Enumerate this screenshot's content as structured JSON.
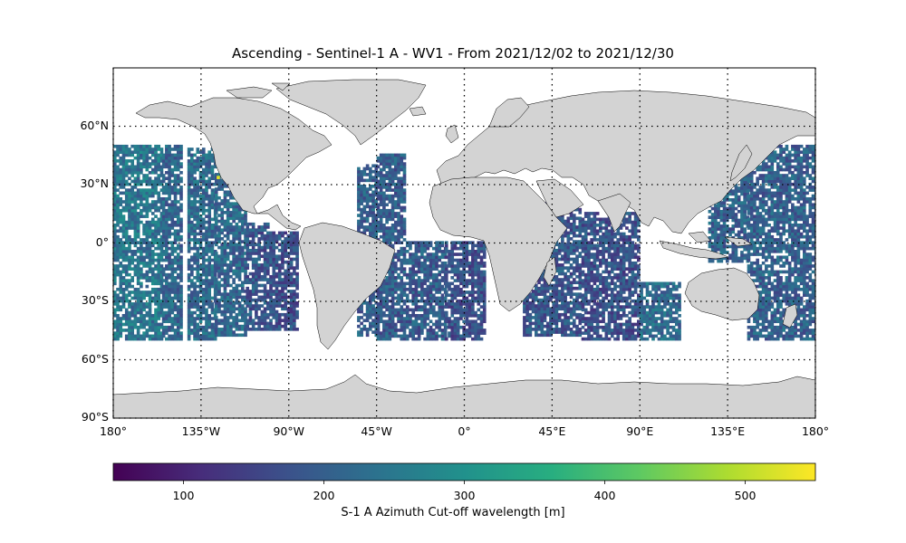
{
  "title": "Ascending - Sentinel-1 A - WV1 - From 2021/12/02 to 2021/12/30",
  "latitude_ticks": [
    {
      "value": 60,
      "label": "60°N"
    },
    {
      "value": 30,
      "label": "30°N"
    },
    {
      "value": 0,
      "label": "0°"
    },
    {
      "value": -30,
      "label": "30°S"
    },
    {
      "value": -60,
      "label": "60°S"
    },
    {
      "value": -90,
      "label": "90°S"
    }
  ],
  "longitude_ticks": [
    {
      "value": -180,
      "label": "180°"
    },
    {
      "value": -135,
      "label": "135°W"
    },
    {
      "value": -90,
      "label": "90°W"
    },
    {
      "value": -45,
      "label": "45°W"
    },
    {
      "value": 0,
      "label": "0°"
    },
    {
      "value": 45,
      "label": "45°E"
    },
    {
      "value": 90,
      "label": "90°E"
    },
    {
      "value": 135,
      "label": "135°E"
    },
    {
      "value": 180,
      "label": "180°"
    }
  ],
  "colorbar": {
    "label": "S-1 A Azimuth Cut-off wavelength [m]",
    "min": 50,
    "max": 550,
    "ticks": [
      {
        "value": 100,
        "label": "100"
      },
      {
        "value": 200,
        "label": "200"
      },
      {
        "value": 300,
        "label": "300"
      },
      {
        "value": 400,
        "label": "400"
      },
      {
        "value": 500,
        "label": "500"
      }
    ],
    "colormap": "viridis"
  },
  "map": {
    "projection": "PlateCarree",
    "lon_range": [
      -180,
      180
    ],
    "lat_range": [
      -90,
      90
    ],
    "land_color": "#d3d3d3",
    "coastline_color": "#000000",
    "gridlines": "dotted",
    "data_lat_range": [
      -50,
      50
    ]
  },
  "chart_data": {
    "type": "heatmap",
    "title": "Ascending - Sentinel-1 A - WV1 - From 2021/12/02 to 2021/12/30",
    "xlim": [
      -180,
      180
    ],
    "ylim": [
      -90,
      90
    ],
    "value_range": [
      50,
      550
    ],
    "colorbar_label": "S-1 A Azimuth Cut-off wavelength [m]",
    "swaths": [
      {
        "lon_start": -180,
        "lon_end": -155,
        "lat_min": -50,
        "lat_max": 50,
        "typical_value": 240
      },
      {
        "lon_start": -155,
        "lon_end": -145,
        "lat_min": -50,
        "lat_max": 50,
        "typical_value": 210
      },
      {
        "lon_start": -142,
        "lon_end": -128,
        "lat_min": -50,
        "lat_max": 48,
        "typical_value": 220
      },
      {
        "lon_start": -128,
        "lon_end": -112,
        "lat_min": -48,
        "lat_max": 35,
        "typical_value": 210
      },
      {
        "lon_start": -112,
        "lon_end": -100,
        "lat_min": -45,
        "lat_max": 10,
        "typical_value": 180
      },
      {
        "lon_start": -100,
        "lon_end": -85,
        "lat_min": -45,
        "lat_max": 5,
        "typical_value": 170
      },
      {
        "lon_start": -55,
        "lon_end": -45,
        "lat_min": -48,
        "lat_max": 40,
        "typical_value": 200
      },
      {
        "lon_start": -45,
        "lon_end": -30,
        "lat_min": -50,
        "lat_max": 45,
        "typical_value": 190
      },
      {
        "lon_start": -30,
        "lon_end": -10,
        "lat_min": -50,
        "lat_max": 0,
        "typical_value": 190
      },
      {
        "lon_start": -10,
        "lon_end": 10,
        "lat_min": -50,
        "lat_max": 0,
        "typical_value": 170
      },
      {
        "lon_start": 30,
        "lon_end": 60,
        "lat_min": -48,
        "lat_max": 20,
        "typical_value": 180
      },
      {
        "lon_start": 60,
        "lon_end": 90,
        "lat_min": -50,
        "lat_max": 15,
        "typical_value": 170
      },
      {
        "lon_start": 90,
        "lon_end": 110,
        "lat_min": -50,
        "lat_max": -20,
        "typical_value": 220
      },
      {
        "lon_start": 125,
        "lon_end": 145,
        "lat_min": -10,
        "lat_max": 40,
        "typical_value": 200
      },
      {
        "lon_start": 145,
        "lon_end": 180,
        "lat_min": -50,
        "lat_max": 50,
        "typical_value": 200
      }
    ],
    "outlier": {
      "lon": -127,
      "lat": 33,
      "value": 530
    }
  }
}
